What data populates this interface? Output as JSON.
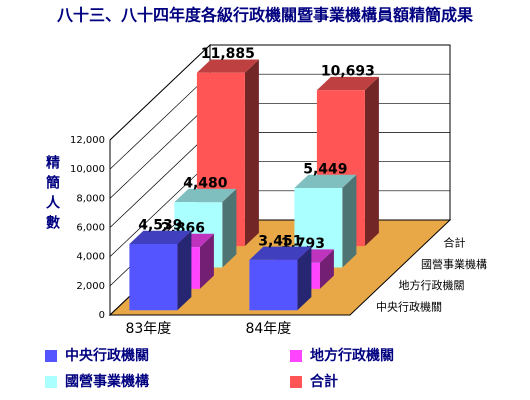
{
  "chart_data": {
    "type": "bar3d",
    "title": "八十三、八十四年度各級行政機關暨事業機構員額精簡成果",
    "y_label": "精簡人數",
    "categories": [
      "83年度",
      "84年度"
    ],
    "series": [
      {
        "name": "中央行政機關",
        "color": "#5555ff",
        "values": [
          4539,
          3451
        ],
        "value_labels": [
          "4,539",
          "3,451"
        ]
      },
      {
        "name": "地方行政機關",
        "color": "#ff44ff",
        "values": [
          2866,
          1793
        ],
        "value_labels": [
          "2,866",
          "1,793"
        ]
      },
      {
        "name": "國營事業機構",
        "color": "#aaffff",
        "values": [
          4480,
          5449
        ],
        "value_labels": [
          "4,480",
          "5,449"
        ]
      },
      {
        "name": "合計",
        "color": "#ff5555",
        "values": [
          11885,
          10693
        ],
        "value_labels": [
          "11,885",
          "10,693"
        ]
      }
    ],
    "ylim": [
      0,
      12000
    ],
    "yticks": [
      0,
      {
        "value": 2000,
        "label": "2,000"
      },
      {
        "value": 4000,
        "label": "4,000"
      },
      {
        "value": 6000,
        "label": "6,000"
      },
      {
        "value": 8000,
        "label": "8,000"
      },
      {
        "value": 10000,
        "label": "10,000"
      },
      {
        "value": 12000,
        "label": "12,000"
      }
    ],
    "grid": true
  }
}
